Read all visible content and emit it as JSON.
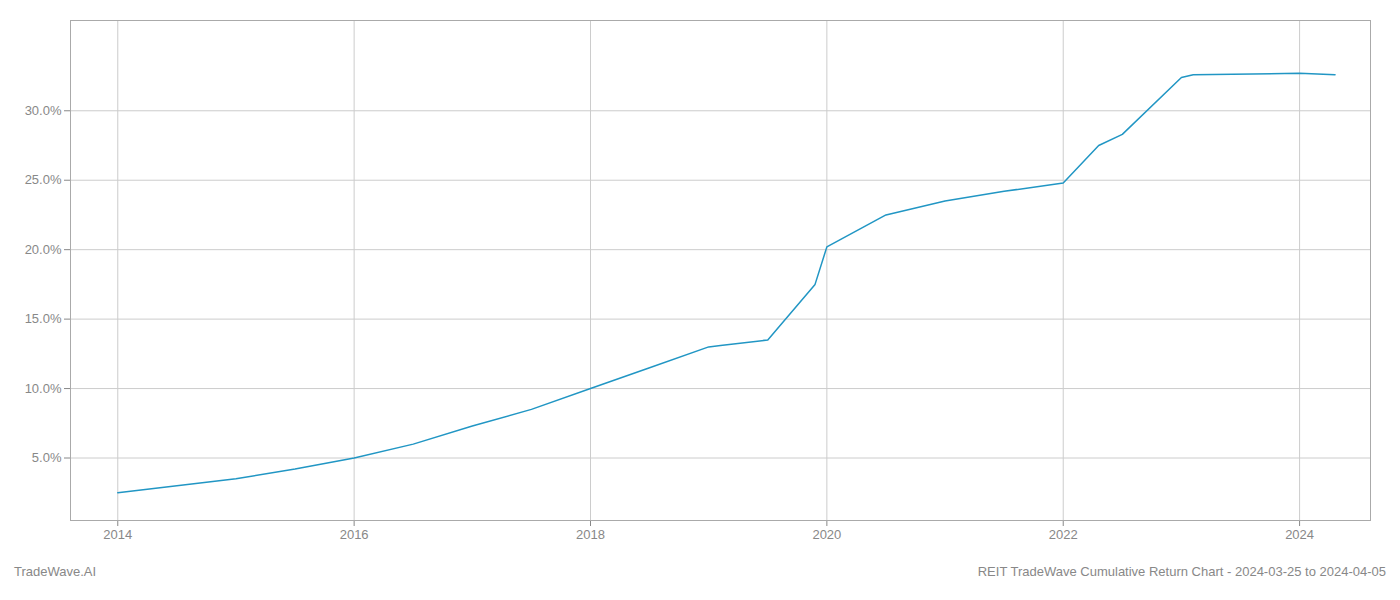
{
  "chart_data": {
    "type": "line",
    "x": [
      2014.0,
      2014.5,
      2015.0,
      2015.5,
      2016.0,
      2016.5,
      2017.0,
      2017.5,
      2018.0,
      2018.5,
      2019.0,
      2019.1,
      2019.5,
      2019.9,
      2020.0,
      2020.5,
      2021.0,
      2021.5,
      2022.0,
      2022.3,
      2022.5,
      2023.0,
      2023.1,
      2024.0,
      2024.3
    ],
    "values": [
      2.5,
      3.0,
      3.5,
      4.2,
      5.0,
      6.0,
      7.3,
      8.5,
      10.0,
      11.5,
      13.0,
      13.1,
      13.5,
      17.5,
      20.2,
      22.5,
      23.5,
      24.2,
      24.8,
      27.5,
      28.3,
      32.4,
      32.6,
      32.7,
      32.6
    ],
    "color": "#2196c4",
    "xlim": [
      2013.6,
      2024.6
    ],
    "ylim": [
      0.5,
      36.5
    ],
    "xticks": [
      2014,
      2016,
      2018,
      2020,
      2022,
      2024
    ],
    "yticks": [
      {
        "value": 5.0,
        "label": "5.0%"
      },
      {
        "value": 10.0,
        "label": "10.0%"
      },
      {
        "value": 15.0,
        "label": "15.0%"
      },
      {
        "value": 20.0,
        "label": "20.0%"
      },
      {
        "value": 25.0,
        "label": "25.0%"
      },
      {
        "value": 30.0,
        "label": "30.0%"
      }
    ],
    "grid": true,
    "annotations": [
      "TradeWave.AI",
      "REIT TradeWave Cumulative Return Chart - 2024-03-25 to 2024-04-05"
    ]
  }
}
